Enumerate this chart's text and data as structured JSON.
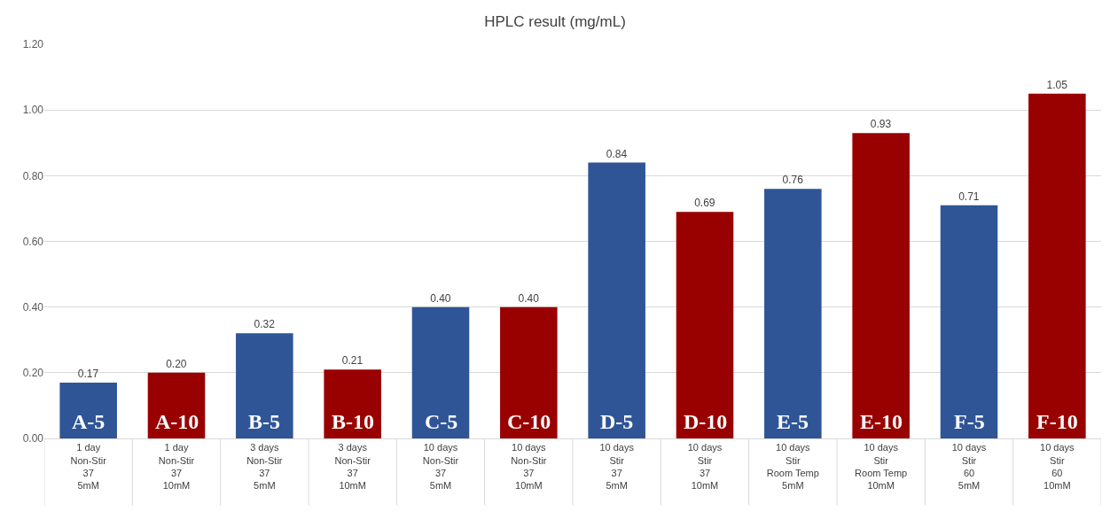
{
  "chart_data": {
    "type": "bar",
    "title": "HPLC result (mg/mL)",
    "categories": [
      "1 day\nNon-Stir\n37\n5mM",
      "1 day\nNon-Stir\n37\n10mM",
      "3 days\nNon-Stir\n37\n5mM",
      "3 days\nNon-Stir\n37\n10mM",
      "10 days\nNon-Stir\n37\n5mM",
      "10 days\nNon-Stir\n37\n10mM",
      "10 days\nStir\n37\n5mM",
      "10 days\nStir\n37\n10mM",
      "10 days\nStir\nRoom Temp\n5mM",
      "10 days\nStir\nRoom Temp\n10mM",
      "10 days\nStir\n60\n5mM",
      "10 days\nStir\n60\n10mM"
    ],
    "values": [
      0.17,
      0.2,
      0.32,
      0.21,
      0.4,
      0.4,
      0.84,
      0.69,
      0.76,
      0.93,
      0.71,
      1.05
    ],
    "colors": [
      "#2f5597",
      "#990000",
      "#2f5597",
      "#990000",
      "#2f5597",
      "#990000",
      "#2f5597",
      "#990000",
      "#2f5597",
      "#990000",
      "#2f5597",
      "#990000"
    ],
    "value_labels": [
      "0.17",
      "0.20",
      "0.32",
      "0.21",
      "0.40",
      "0.40",
      "0.84",
      "0.69",
      "0.76",
      "0.93",
      "0.71",
      "1.05"
    ],
    "annotations": [
      "A-5",
      "A-10",
      "B-5",
      "B-10",
      "C-5",
      "C-10",
      "D-5",
      "D-10",
      "E-5",
      "E-10",
      "F-5",
      "F-10"
    ],
    "ylim": [
      0,
      1.2
    ],
    "yticks": [
      {
        "value": 0,
        "label": "0.00"
      },
      {
        "value": 0.2,
        "label": "0.20"
      },
      {
        "value": 0.4,
        "label": "0.40"
      },
      {
        "value": 0.6,
        "label": "0.60"
      },
      {
        "value": 0.8,
        "label": "0.80"
      },
      {
        "value": 1.0,
        "label": "1.00"
      },
      {
        "value": 1.2,
        "label": "1.20"
      }
    ],
    "grid": "y"
  }
}
